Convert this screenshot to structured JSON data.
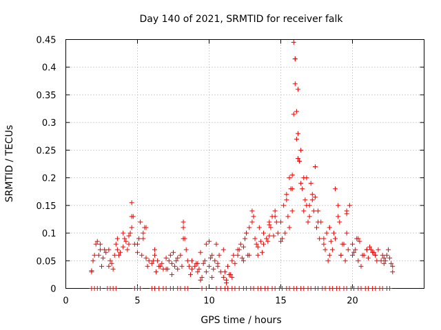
{
  "chart_data": {
    "type": "scatter",
    "title": "Day 140 of 2021, SRMTID for receiver falk",
    "xlabel": "GPS time / hours",
    "ylabel": "SRMTID / TECUs",
    "xlim": [
      0,
      25
    ],
    "ylim": [
      0,
      0.45
    ],
    "xticks": [
      0,
      5,
      10,
      15,
      20
    ],
    "xtick_labels": [
      "0",
      "5",
      "10",
      "15",
      "20"
    ],
    "yticks": [
      0,
      0.05,
      0.1,
      0.15,
      0.2,
      0.25,
      0.3,
      0.35,
      0.4,
      0.45
    ],
    "ytick_labels": [
      "0",
      "0.05",
      "0.1",
      "0.15",
      "0.2",
      "0.25",
      "0.3",
      "0.35",
      "0.4",
      "0.45"
    ],
    "grid": true,
    "marker": "+",
    "color": "#ee0000",
    "series": [
      {
        "name": "SRMTID",
        "x": [
          1.8,
          2.0,
          2.2,
          2.4,
          2.6,
          2.8,
          3.0,
          3.2,
          3.4,
          3.6,
          3.8,
          4.0,
          4.2,
          4.4,
          4.6,
          4.8,
          5.0,
          5.2,
          5.4,
          5.6,
          5.8,
          6.0,
          6.2,
          6.4,
          6.6,
          6.8,
          7.0,
          7.2,
          7.4,
          7.6,
          7.8,
          8.0,
          8.2,
          8.4,
          8.6,
          8.8,
          9.0,
          9.2,
          9.4,
          9.6,
          9.8,
          10.0,
          10.2,
          10.4,
          10.6,
          10.8,
          11.0,
          11.2,
          11.4,
          11.6,
          11.8,
          12.0,
          12.2,
          12.4,
          12.6,
          12.8,
          13.0,
          13.2,
          13.4,
          13.6,
          13.8,
          14.0,
          14.2,
          14.4,
          14.6,
          14.8,
          15.0,
          15.2,
          15.4,
          15.6,
          15.8,
          15.9,
          16.0,
          16.1,
          16.2,
          16.4,
          16.6,
          16.8,
          17.0,
          17.2,
          17.4,
          17.6,
          17.8,
          18.0,
          18.2,
          18.4,
          18.6,
          18.8,
          19.0,
          19.2,
          19.4,
          19.6,
          19.8,
          20.0,
          20.2,
          20.4,
          20.6,
          20.8,
          21.0,
          21.2,
          21.4,
          21.6,
          21.8,
          22.0,
          22.2,
          22.4,
          22.6,
          22.8,
          1.8,
          1.9,
          2.1,
          2.3,
          2.5,
          2.7,
          3.1,
          3.3,
          3.5,
          3.7,
          4.1,
          4.3,
          4.5,
          4.7,
          5.1,
          5.3,
          5.5,
          5.7,
          6.1,
          6.3,
          6.5,
          6.7,
          7.1,
          7.3,
          7.5,
          7.7,
          8.1,
          8.3,
          8.5,
          8.7,
          9.1,
          9.3,
          9.5,
          9.7,
          10.1,
          10.3,
          10.5,
          10.7,
          11.1,
          11.3,
          11.5,
          11.7,
          12.1,
          12.3,
          12.5,
          12.7,
          13.1,
          13.3,
          13.5,
          13.7,
          14.1,
          14.3,
          14.5,
          14.7,
          15.1,
          15.3,
          15.5,
          15.7,
          16.3,
          16.5,
          16.7,
          16.9,
          17.1,
          17.3,
          17.5,
          17.7,
          18.1,
          18.3,
          18.5,
          18.7,
          19.1,
          19.3,
          19.5,
          19.7,
          20.1,
          20.3,
          20.5,
          20.7,
          21.1,
          21.3,
          21.5,
          21.7,
          22.1,
          22.3,
          22.5,
          22.7,
          2.4,
          3.0,
          3.6,
          4.0,
          4.4,
          4.6,
          5.4,
          5.6,
          6.2,
          7.0,
          7.4,
          7.8,
          8.2,
          8.8,
          9.4,
          9.8,
          10.2,
          10.6,
          11.2,
          11.6,
          12.0,
          12.4,
          12.6,
          13.0,
          13.4,
          13.8,
          14.2,
          14.6,
          15.0,
          15.4,
          15.8,
          16.0,
          16.2,
          16.4,
          16.8,
          17.2,
          17.6,
          18.0,
          18.4,
          18.8,
          19.2,
          19.6,
          20.0,
          20.4,
          21.0,
          21.6,
          22.2,
          22.8,
          4.6,
          5.0,
          8.2,
          9.2,
          10.0,
          11.0,
          12.8,
          14.2,
          15.6,
          15.8,
          15.9,
          16.0,
          16.1,
          16.2,
          16.6,
          17.0,
          17.4,
          18.4,
          19.0,
          19.6
        ],
        "y": [
          0.032,
          0.06,
          0.085,
          0.07,
          0.055,
          0.065,
          0.04,
          0.045,
          0.06,
          0.07,
          0.065,
          0.075,
          0.085,
          0.095,
          0.11,
          0.08,
          0.065,
          0.12,
          0.1,
          0.055,
          0.05,
          0.045,
          0.06,
          0.05,
          0.04,
          0.035,
          0.055,
          0.05,
          0.025,
          0.04,
          0.035,
          0.06,
          0.11,
          0.07,
          0.04,
          0.035,
          0.04,
          0.03,
          0.015,
          0.045,
          0.03,
          0.04,
          0.06,
          0.05,
          0.045,
          0.03,
          0.02,
          0.01,
          0.025,
          0.02,
          0.045,
          0.06,
          0.08,
          0.075,
          0.1,
          0.11,
          0.12,
          0.09,
          0.06,
          0.085,
          0.1,
          0.09,
          0.12,
          0.13,
          0.14,
          0.1,
          0.12,
          0.15,
          0.17,
          0.2,
          0.14,
          0.445,
          0.415,
          0.32,
          0.28,
          0.19,
          0.2,
          0.15,
          0.13,
          0.17,
          0.22,
          0.14,
          0.12,
          0.08,
          0.1,
          0.06,
          0.07,
          0.18,
          0.15,
          0.06,
          0.08,
          0.1,
          0.15,
          0.06,
          0.07,
          0.05,
          0.04,
          0.06,
          0.07,
          0.075,
          0.065,
          0.06,
          0.07,
          0.05,
          0.045,
          0.06,
          0.055,
          0.03,
          0.03,
          0.05,
          0.08,
          0.06,
          0.04,
          0.07,
          0.05,
          0.035,
          0.08,
          0.06,
          0.09,
          0.07,
          0.1,
          0.13,
          0.09,
          0.06,
          0.11,
          0.04,
          0.05,
          0.03,
          0.04,
          0.045,
          0.035,
          0.06,
          0.065,
          0.05,
          0.04,
          0.09,
          0.05,
          0.025,
          0.045,
          0.035,
          0.02,
          0.05,
          0.055,
          0.035,
          0.08,
          0.06,
          0.03,
          0.04,
          0.025,
          0.06,
          0.07,
          0.055,
          0.09,
          0.06,
          0.13,
          0.08,
          0.11,
          0.065,
          0.085,
          0.11,
          0.095,
          0.12,
          0.09,
          0.1,
          0.13,
          0.18,
          0.23,
          0.18,
          0.16,
          0.12,
          0.19,
          0.14,
          0.11,
          0.09,
          0.07,
          0.05,
          0.085,
          0.1,
          0.12,
          0.08,
          0.05,
          0.07,
          0.065,
          0.09,
          0.085,
          0.06,
          0.055,
          0.07,
          0.065,
          0.05,
          0.06,
          0.05,
          0.07,
          0.045,
          0.08,
          0.07,
          0.09,
          0.1,
          0.08,
          0.13,
          0.09,
          0.11,
          0.07,
          0.035,
          0.045,
          0.055,
          0.09,
          0.05,
          0.065,
          0.08,
          0.02,
          0.04,
          0.015,
          0.05,
          0.07,
          0.05,
          0.1,
          0.14,
          0.075,
          0.08,
          0.115,
          0.13,
          0.085,
          0.16,
          0.18,
          0.37,
          0.36,
          0.25,
          0.2,
          0.16,
          0.12,
          0.09,
          0.11,
          0.09,
          0.06,
          0.14,
          0.08,
          0.09,
          0.07,
          0.06,
          0.055,
          0.04,
          0.155,
          0.08,
          0.12,
          0.045,
          0.085,
          0.07,
          0.06,
          0.095,
          0.11,
          0.205,
          0.315,
          0.415,
          0.27,
          0.235,
          0.14,
          0.15,
          0.165,
          0.11,
          0.13,
          0.135
        ],
        "zero_band_x": [
          1.8,
          2.0,
          2.2,
          2.4,
          2.9,
          3.1,
          3.3,
          3.5,
          4.8,
          5.0,
          5.2,
          6.0,
          6.2,
          6.5,
          6.8,
          7.0,
          7.3,
          7.5,
          7.8,
          8.0,
          8.3,
          8.5,
          9.5,
          9.8,
          10.5,
          10.8,
          11.1,
          11.3,
          11.6,
          11.8,
          12.1,
          12.4,
          12.6,
          12.9,
          13.1,
          13.4,
          13.6,
          13.9,
          14.1,
          14.4,
          14.6,
          14.9,
          15.1,
          15.4,
          15.6,
          15.9,
          16.1,
          16.4,
          16.6,
          16.9,
          17.1,
          17.4,
          17.6,
          17.9,
          18.1,
          18.4,
          18.6,
          18.9,
          19.1,
          19.4,
          19.6,
          19.9,
          20.1,
          20.4,
          20.6,
          20.9,
          21.1,
          21.4,
          21.6,
          21.9,
          22.1,
          22.4,
          22.6
        ],
        "zero_band_y": 0.0
      }
    ]
  }
}
